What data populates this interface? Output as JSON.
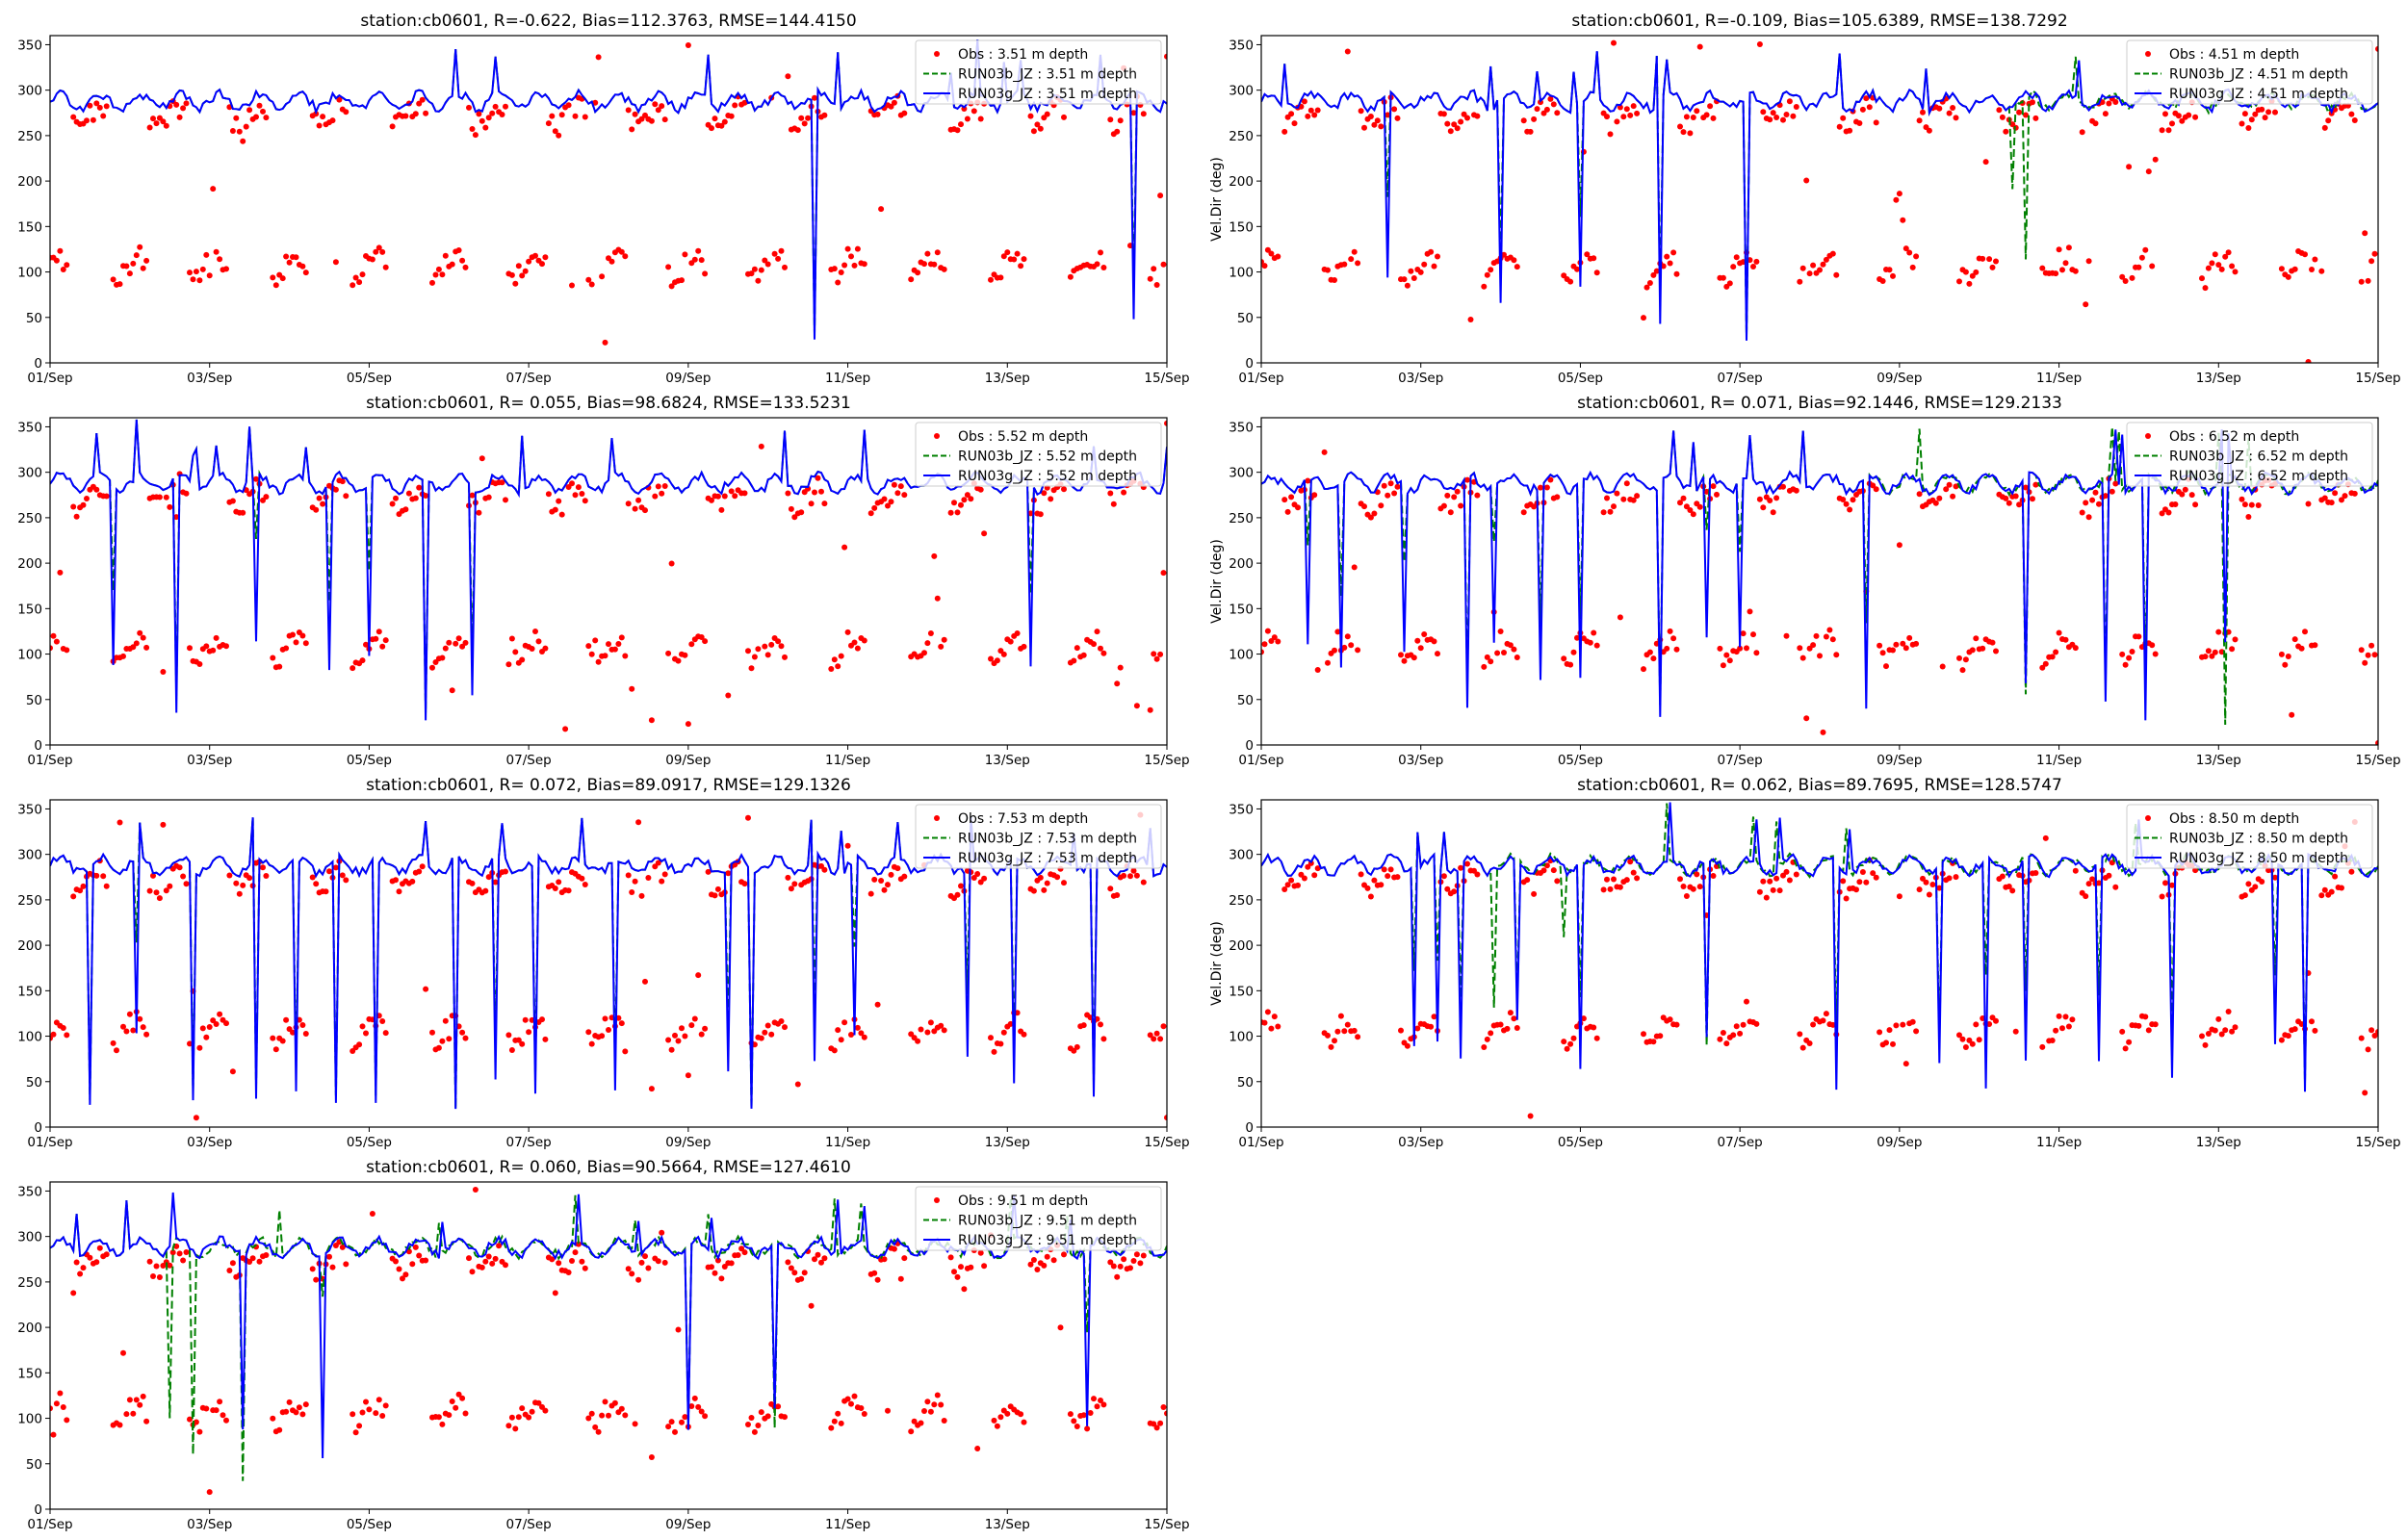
{
  "figure": {
    "background": "#ffffff"
  },
  "colors": {
    "obs": "#ff0000",
    "run03b": "#008000",
    "run03g": "#0000ff",
    "axes": "#000000"
  },
  "chart_data": [
    {
      "type": "line",
      "title": "station:cb0601, R=-0.622, Bias=112.3763, RMSE=144.4150",
      "ylabel": "",
      "ylim": [
        0,
        360
      ],
      "xlim": [
        0,
        14
      ],
      "yticks": [
        "0",
        "50",
        "100",
        "150",
        "200",
        "250",
        "300",
        "350"
      ],
      "xticks": [
        "01/Sep",
        "03/Sep",
        "05/Sep",
        "07/Sep",
        "09/Sep",
        "11/Sep",
        "13/Sep",
        "15/Sep"
      ],
      "legend": {
        "position": "top-right",
        "entries": [
          "Obs : 3.51 m depth",
          "RUN03b_JZ : 3.51 m depth",
          "RUN03g_JZ : 3.51 m depth"
        ]
      },
      "series": [
        {
          "name": "Obs : 3.51 m depth",
          "style": "scatter",
          "pattern": "bimodal daily bands near 100-115 and 255-285 deg"
        },
        {
          "name": "RUN03b_JZ : 3.51 m depth",
          "style": "dashed",
          "baseline": "275-300 deg",
          "dips_day": []
        },
        {
          "name": "RUN03g_JZ : 3.51 m depth",
          "style": "solid",
          "baseline": "275-300 deg",
          "dips_day": [
            9.6,
            13.6
          ]
        }
      ]
    },
    {
      "type": "line",
      "title": "station:cb0601, R=-0.109, Bias=105.6389, RMSE=138.7292",
      "ylabel": "Vel.Dir (deg)",
      "ylim": [
        0,
        360
      ],
      "xlim": [
        0,
        14
      ],
      "yticks": [
        "0",
        "50",
        "100",
        "150",
        "200",
        "250",
        "300",
        "350"
      ],
      "xticks": [
        "01/Sep",
        "03/Sep",
        "05/Sep",
        "07/Sep",
        "09/Sep",
        "11/Sep",
        "13/Sep",
        "15/Sep"
      ],
      "legend": {
        "position": "top-right",
        "entries": [
          "Obs : 4.51 m depth",
          "RUN03b_JZ : 4.51 m depth",
          "RUN03g_JZ : 4.51 m depth"
        ]
      },
      "series": [
        {
          "name": "Obs : 4.51 m depth",
          "style": "scatter",
          "pattern": "bimodal daily bands near 100-115 and 255-285 deg"
        },
        {
          "name": "RUN03b_JZ : 4.51 m depth",
          "style": "dashed",
          "baseline": "275-300 deg",
          "dips_day": [
            9.4,
            9.6
          ]
        },
        {
          "name": "RUN03g_JZ : 4.51 m depth",
          "style": "solid",
          "baseline": "275-300 deg",
          "dips_day": [
            1.6,
            3.0,
            4.0,
            5.0,
            6.1
          ]
        }
      ]
    },
    {
      "type": "line",
      "title": "station:cb0601, R= 0.055, Bias=98.6824, RMSE=133.5231",
      "ylabel": "",
      "ylim": [
        0,
        360
      ],
      "xlim": [
        0,
        14
      ],
      "yticks": [
        "0",
        "50",
        "100",
        "150",
        "200",
        "250",
        "300",
        "350"
      ],
      "xticks": [
        "01/Sep",
        "03/Sep",
        "05/Sep",
        "07/Sep",
        "09/Sep",
        "11/Sep",
        "13/Sep",
        "15/Sep"
      ],
      "legend": {
        "position": "top-right",
        "entries": [
          "Obs : 5.52 m depth",
          "RUN03b_JZ : 5.52 m depth",
          "RUN03g_JZ : 5.52 m depth"
        ]
      },
      "series": [
        {
          "name": "Obs : 5.52 m depth",
          "style": "scatter",
          "pattern": "bimodal daily bands near 100-115 and 255-285 deg"
        },
        {
          "name": "RUN03b_JZ : 5.52 m depth",
          "style": "dashed",
          "baseline": "275-300 deg",
          "dips_day": []
        },
        {
          "name": "RUN03g_JZ : 5.52 m depth",
          "style": "solid",
          "baseline": "275-300 deg",
          "dips_day": [
            0.8,
            1.6,
            2.6,
            3.5,
            4.0,
            4.7,
            5.3,
            12.3
          ]
        }
      ]
    },
    {
      "type": "line",
      "title": "station:cb0601, R= 0.071, Bias=92.1446, RMSE=129.2133",
      "ylabel": "Vel.Dir (deg)",
      "ylim": [
        0,
        360
      ],
      "xlim": [
        0,
        14
      ],
      "yticks": [
        "0",
        "50",
        "100",
        "150",
        "200",
        "250",
        "300",
        "350"
      ],
      "xticks": [
        "01/Sep",
        "03/Sep",
        "05/Sep",
        "07/Sep",
        "09/Sep",
        "11/Sep",
        "13/Sep",
        "15/Sep"
      ],
      "legend": {
        "position": "top-right",
        "entries": [
          "Obs : 6.52 m depth",
          "RUN03b_JZ : 6.52 m depth",
          "RUN03g_JZ : 6.52 m depth"
        ]
      },
      "series": [
        {
          "name": "Obs : 6.52 m depth",
          "style": "scatter",
          "pattern": "bimodal daily bands near 100-115 and 255-285 deg"
        },
        {
          "name": "RUN03b_JZ : 6.52 m depth",
          "style": "dashed",
          "baseline": "275-300 deg",
          "dips_day": [
            7.6
          ]
        },
        {
          "name": "RUN03g_JZ : 6.52 m depth",
          "style": "solid",
          "baseline": "275-300 deg",
          "dips_day": [
            0.6,
            1.0,
            1.8,
            2.6,
            2.9,
            3.5,
            4.0,
            5.0,
            5.6,
            6.0,
            7.6,
            9.6,
            10.6,
            11.1,
            12.1
          ]
        }
      ]
    },
    {
      "type": "line",
      "title": "station:cb0601, R= 0.072, Bias=89.0917, RMSE=129.1326",
      "ylabel": "",
      "ylim": [
        0,
        360
      ],
      "xlim": [
        0,
        14
      ],
      "yticks": [
        "0",
        "50",
        "100",
        "150",
        "200",
        "250",
        "300",
        "350"
      ],
      "xticks": [
        "01/Sep",
        "03/Sep",
        "05/Sep",
        "07/Sep",
        "09/Sep",
        "11/Sep",
        "13/Sep",
        "15/Sep"
      ],
      "legend": {
        "position": "top-right",
        "entries": [
          "Obs : 7.53 m depth",
          "RUN03b_JZ : 7.53 m depth",
          "RUN03g_JZ : 7.53 m depth"
        ]
      },
      "series": [
        {
          "name": "Obs : 7.53 m depth",
          "style": "scatter",
          "pattern": "bimodal daily bands near 100-115 and 255-285 deg"
        },
        {
          "name": "RUN03b_JZ : 7.53 m depth",
          "style": "dashed",
          "baseline": "275-300 deg",
          "dips_day": []
        },
        {
          "name": "RUN03g_JZ : 7.53 m depth",
          "style": "solid",
          "baseline": "275-300 deg",
          "dips_day": [
            0.5,
            1.1,
            1.8,
            2.6,
            3.1,
            3.6,
            4.1,
            5.1,
            5.6,
            6.1,
            7.1,
            8.5,
            8.8,
            9.6,
            10.1,
            11.5,
            12.1,
            13.1
          ]
        }
      ]
    },
    {
      "type": "line",
      "title": "station:cb0601, R= 0.062, Bias=89.7695, RMSE=128.5747",
      "ylabel": "Vel.Dir (deg)",
      "ylim": [
        0,
        360
      ],
      "xlim": [
        0,
        14
      ],
      "yticks": [
        "0",
        "50",
        "100",
        "150",
        "200",
        "250",
        "300",
        "350"
      ],
      "xticks": [
        "01/Sep",
        "03/Sep",
        "05/Sep",
        "07/Sep",
        "09/Sep",
        "11/Sep",
        "13/Sep",
        "15/Sep"
      ],
      "legend": {
        "position": "top-right",
        "entries": [
          "Obs : 8.50 m depth",
          "RUN03b_JZ : 8.50 m depth",
          "RUN03g_JZ : 8.50 m depth"
        ]
      },
      "series": [
        {
          "name": "Obs : 8.50 m depth",
          "style": "scatter",
          "pattern": "bimodal daily bands near 100-115 and 255-285 deg"
        },
        {
          "name": "RUN03b_JZ : 8.50 m depth",
          "style": "dashed",
          "baseline": "275-300 deg",
          "dips_day": [
            2.9,
            3.8
          ]
        },
        {
          "name": "RUN03g_JZ : 8.50 m depth",
          "style": "solid",
          "baseline": "275-300 deg",
          "dips_day": [
            1.9,
            2.2,
            2.5,
            3.2,
            4.0,
            5.6,
            7.2,
            8.5,
            9.1,
            9.6,
            10.5,
            11.4,
            12.7,
            13.1
          ]
        }
      ]
    },
    {
      "type": "line",
      "title": "station:cb0601, R= 0.060, Bias=90.5664, RMSE=127.4610",
      "ylabel": "",
      "ylim": [
        0,
        360
      ],
      "xlim": [
        0,
        14
      ],
      "yticks": [
        "0",
        "50",
        "100",
        "150",
        "200",
        "250",
        "300",
        "350"
      ],
      "xticks": [
        "01/Sep",
        "03/Sep",
        "05/Sep",
        "07/Sep",
        "09/Sep",
        "11/Sep",
        "13/Sep",
        "15/Sep"
      ],
      "legend": {
        "position": "top-right",
        "entries": [
          "Obs : 9.51 m depth",
          "RUN03b_JZ : 9.51 m depth",
          "RUN03g_JZ : 9.51 m depth"
        ]
      },
      "series": [
        {
          "name": "Obs : 9.51 m depth",
          "style": "scatter",
          "pattern": "bimodal daily bands near 100-115 and 255-285 deg"
        },
        {
          "name": "RUN03b_JZ : 9.51 m depth",
          "style": "dashed",
          "baseline": "275-300 deg",
          "dips_day": [
            1.5,
            1.8
          ]
        },
        {
          "name": "RUN03g_JZ : 9.51 m depth",
          "style": "solid",
          "baseline": "275-300 deg",
          "dips_day": [
            2.4,
            3.4,
            8.0,
            9.1,
            13.0
          ]
        }
      ]
    }
  ]
}
